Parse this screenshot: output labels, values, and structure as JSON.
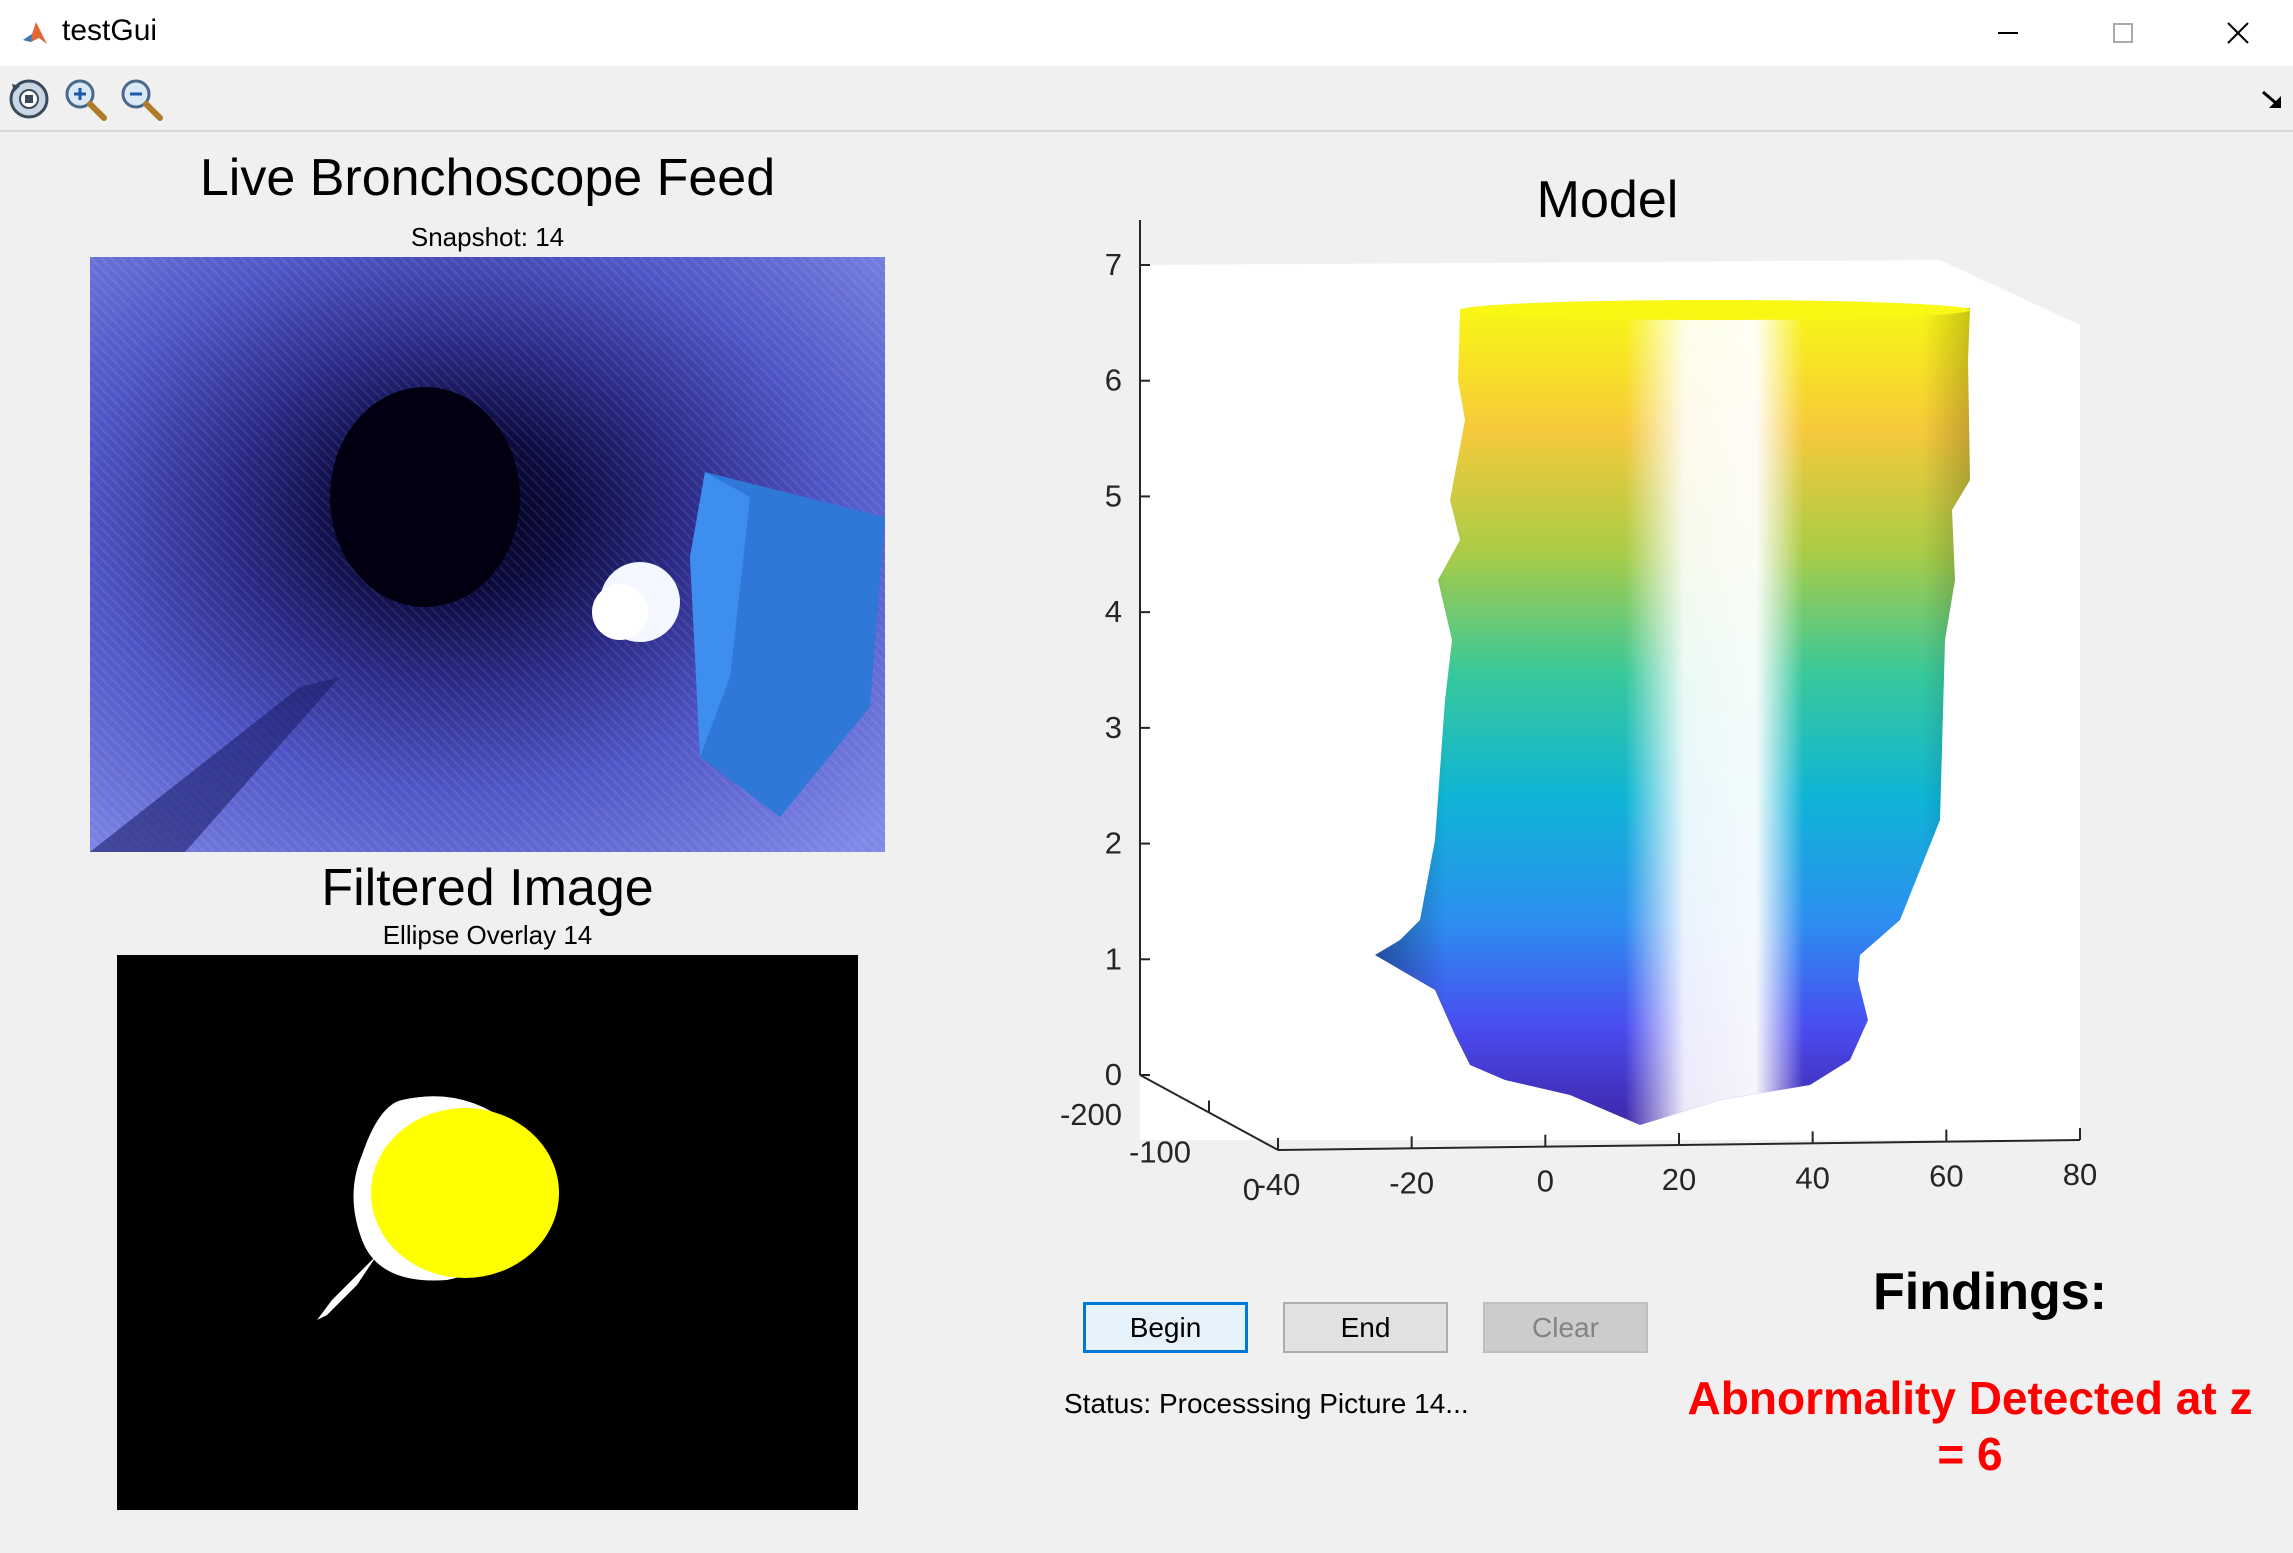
{
  "window": {
    "title": "testGui"
  },
  "toolbar": {
    "icons": [
      "restore-view-icon",
      "zoom-in-icon",
      "zoom-out-icon"
    ]
  },
  "feed": {
    "title": "Live Bronchoscope Feed",
    "subtitle": "Snapshot: 14"
  },
  "filtered": {
    "title": "Filtered Image",
    "subtitle": "Ellipse Overlay 14"
  },
  "model": {
    "title": "Model",
    "z_ticks": [
      "0",
      "1",
      "2",
      "3",
      "4",
      "5",
      "6",
      "7"
    ],
    "x_ticks": [
      "-40",
      "-20",
      "0",
      "20",
      "40",
      "60",
      "80"
    ],
    "y_ticks": [
      "-200",
      "-100",
      "0"
    ],
    "colormap": "parula"
  },
  "buttons": {
    "begin": "Begin",
    "end": "End",
    "clear": "Clear"
  },
  "status": {
    "text": "Status: Processsing Picture 14..."
  },
  "findings": {
    "title": "Findings:",
    "text": "Abnormality Detected at z = 6",
    "color": "#ff0000"
  }
}
